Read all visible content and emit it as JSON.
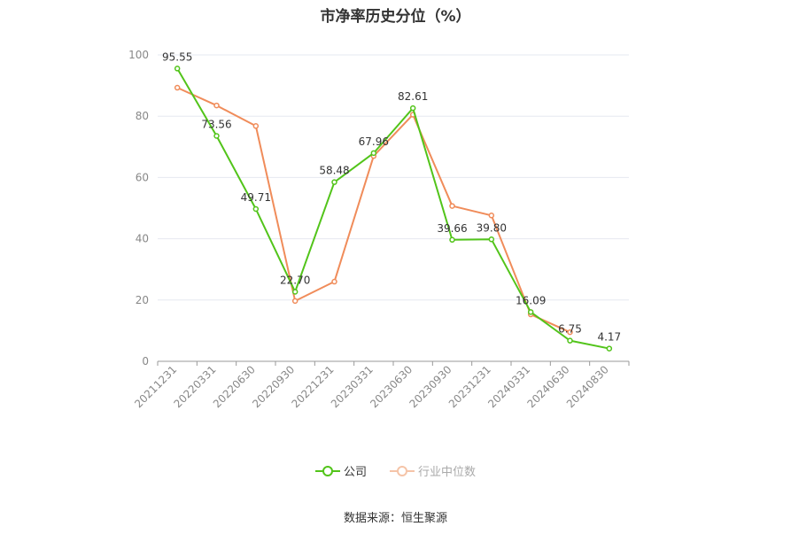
{
  "chart_data": {
    "type": "line",
    "title": "市净率历史分位（%）",
    "categories": [
      "20211231",
      "20220331",
      "20220630",
      "20220930",
      "20221231",
      "20230331",
      "20230630",
      "20230930",
      "20231231",
      "20240331",
      "20240630",
      "20240830"
    ],
    "ylim": [
      0,
      100
    ],
    "yticks": [
      0,
      20,
      40,
      60,
      80,
      100
    ],
    "grid": true,
    "legend_position": "bottom",
    "series": [
      {
        "name": "公司",
        "color": "#52c41a",
        "values": [
          95.55,
          73.56,
          49.71,
          22.7,
          58.48,
          67.96,
          82.61,
          39.66,
          39.8,
          16.09,
          6.75,
          4.17
        ],
        "labels": [
          "95.55",
          "73.56",
          "49.71",
          "22.70",
          "58.48",
          "67.96",
          "82.61",
          "39.66",
          "39.80",
          "16.09",
          "6.75",
          "4.17"
        ]
      },
      {
        "name": "行业中位数",
        "color": "#f08c5a",
        "values": [
          89.3,
          83.5,
          76.8,
          19.7,
          26.0,
          67.0,
          80.5,
          50.7,
          47.6,
          15.3,
          9.5,
          null
        ]
      }
    ]
  },
  "source": "数据来源：恒生聚源"
}
